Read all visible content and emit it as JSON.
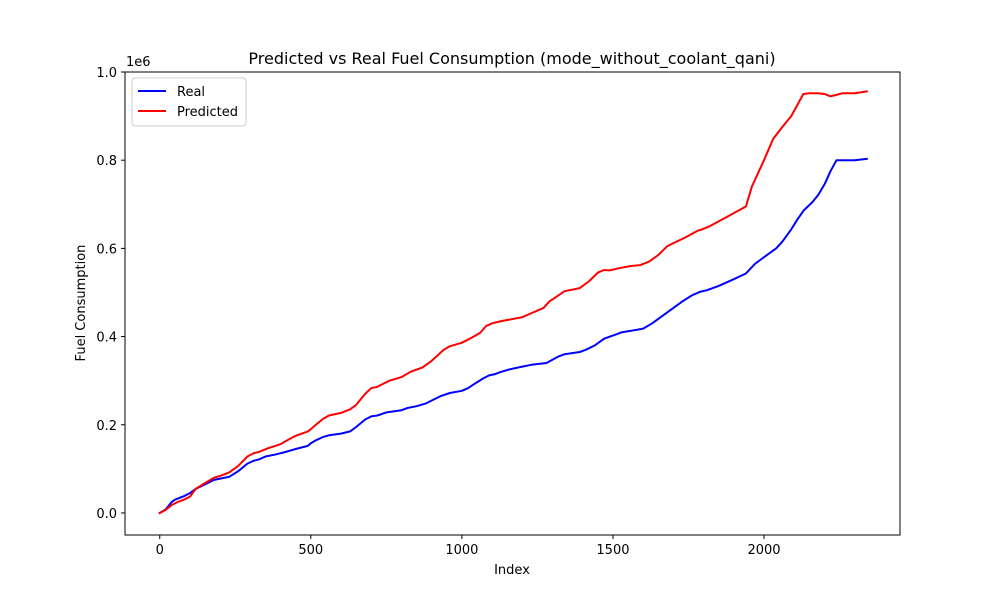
{
  "chart_data": {
    "type": "line",
    "title": "Predicted vs Real Fuel Consumption (mode_without_coolant_qani)",
    "xlabel": "Index",
    "ylabel": "Fuel Consumption",
    "y_offset_label": "1e6",
    "xlim": [
      -115,
      2450
    ],
    "ylim": [
      -0.05,
      1.0
    ],
    "x_ticks": [
      0,
      500,
      1000,
      1500,
      2000
    ],
    "x_tick_labels": [
      "0",
      "500",
      "1000",
      "1500",
      "2000"
    ],
    "y_ticks": [
      0.0,
      0.2,
      0.4,
      0.6,
      0.8,
      1.0
    ],
    "y_tick_labels": [
      "0.0",
      "0.2",
      "0.4",
      "0.6",
      "0.8",
      "1.0"
    ],
    "grid": false,
    "legend_position": "upper-left",
    "series": [
      {
        "name": "Real",
        "color": "#0000ff",
        "x": [
          0,
          20,
          40,
          50,
          80,
          100,
          120,
          150,
          180,
          200,
          230,
          260,
          290,
          310,
          330,
          350,
          380,
          410,
          450,
          490,
          500,
          520,
          540,
          560,
          600,
          630,
          650,
          680,
          700,
          720,
          750,
          800,
          820,
          850,
          880,
          900,
          930,
          960,
          1000,
          1020,
          1040,
          1070,
          1090,
          1110,
          1130,
          1160,
          1200,
          1230,
          1280,
          1320,
          1340,
          1390,
          1410,
          1440,
          1470,
          1490,
          1510,
          1530,
          1560,
          1600,
          1630,
          1660,
          1700,
          1730,
          1760,
          1790,
          1810,
          1850,
          1900,
          1940,
          1970,
          2000,
          2040,
          2060,
          2090,
          2110,
          2130,
          2160,
          2180,
          2200,
          2220,
          2240,
          2260,
          2300,
          2340
        ],
        "y": [
          0.0,
          0.008,
          0.025,
          0.03,
          0.038,
          0.045,
          0.055,
          0.065,
          0.075,
          0.078,
          0.082,
          0.095,
          0.112,
          0.118,
          0.122,
          0.128,
          0.132,
          0.137,
          0.145,
          0.152,
          0.158,
          0.166,
          0.172,
          0.176,
          0.18,
          0.185,
          0.195,
          0.212,
          0.219,
          0.221,
          0.228,
          0.233,
          0.238,
          0.242,
          0.248,
          0.255,
          0.265,
          0.272,
          0.277,
          0.283,
          0.292,
          0.305,
          0.312,
          0.315,
          0.32,
          0.326,
          0.332,
          0.336,
          0.34,
          0.355,
          0.36,
          0.365,
          0.37,
          0.38,
          0.395,
          0.4,
          0.405,
          0.41,
          0.413,
          0.418,
          0.43,
          0.445,
          0.465,
          0.48,
          0.493,
          0.502,
          0.505,
          0.515,
          0.53,
          0.543,
          0.565,
          0.58,
          0.6,
          0.615,
          0.643,
          0.665,
          0.685,
          0.705,
          0.722,
          0.745,
          0.775,
          0.8,
          0.8,
          0.8,
          0.803
        ]
      },
      {
        "name": "Predicted",
        "color": "#ff0000",
        "x": [
          0,
          20,
          40,
          60,
          80,
          100,
          120,
          150,
          180,
          200,
          230,
          260,
          290,
          310,
          330,
          360,
          400,
          420,
          450,
          490,
          500,
          520,
          540,
          560,
          600,
          630,
          650,
          680,
          700,
          720,
          760,
          800,
          830,
          870,
          900,
          940,
          960,
          1000,
          1020,
          1060,
          1080,
          1100,
          1130,
          1170,
          1200,
          1220,
          1270,
          1290,
          1310,
          1340,
          1390,
          1420,
          1450,
          1470,
          1490,
          1520,
          1560,
          1590,
          1620,
          1650,
          1680,
          1700,
          1740,
          1780,
          1790,
          1820,
          1860,
          1900,
          1940,
          1960,
          2000,
          2030,
          2060,
          2090,
          2110,
          2130,
          2150,
          2180,
          2200,
          2220,
          2240,
          2260,
          2300,
          2340
        ],
        "y": [
          0.0,
          0.007,
          0.018,
          0.025,
          0.03,
          0.037,
          0.055,
          0.068,
          0.08,
          0.084,
          0.092,
          0.107,
          0.128,
          0.135,
          0.139,
          0.147,
          0.156,
          0.164,
          0.175,
          0.185,
          0.19,
          0.202,
          0.213,
          0.221,
          0.227,
          0.235,
          0.245,
          0.27,
          0.283,
          0.286,
          0.3,
          0.308,
          0.32,
          0.33,
          0.345,
          0.37,
          0.378,
          0.386,
          0.393,
          0.408,
          0.424,
          0.43,
          0.435,
          0.44,
          0.444,
          0.45,
          0.465,
          0.48,
          0.489,
          0.503,
          0.51,
          0.525,
          0.545,
          0.551,
          0.55,
          0.555,
          0.56,
          0.562,
          0.57,
          0.585,
          0.605,
          0.612,
          0.625,
          0.64,
          0.642,
          0.65,
          0.665,
          0.68,
          0.695,
          0.74,
          0.8,
          0.848,
          0.875,
          0.9,
          0.925,
          0.95,
          0.952,
          0.952,
          0.95,
          0.945,
          0.948,
          0.952,
          0.952,
          0.956
        ]
      }
    ]
  }
}
